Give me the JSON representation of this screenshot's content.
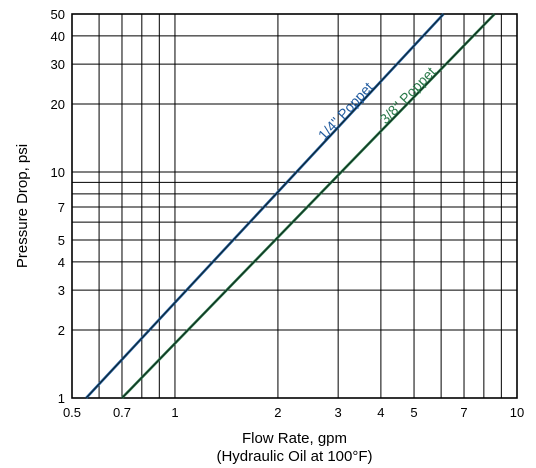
{
  "chart_data": {
    "type": "line",
    "xscale": "log",
    "yscale": "log",
    "xlim": [
      0.5,
      10
    ],
    "ylim": [
      1,
      50
    ],
    "xlabel": "Flow Rate, gpm",
    "xlabel_sub": "(Hydraulic Oil at 100°F)",
    "ylabel": "Pressure Drop, psi",
    "grid": true,
    "xgrid": [
      0.5,
      0.6,
      0.7,
      0.8,
      0.9,
      1,
      2,
      3,
      4,
      5,
      6,
      7,
      8,
      9,
      10
    ],
    "ygrid": [
      1,
      2,
      3,
      4,
      5,
      6,
      7,
      8,
      9,
      10,
      20,
      30,
      40,
      50
    ],
    "xticks": [
      {
        "value": 0.5,
        "label": "0.5"
      },
      {
        "value": 0.7,
        "label": "0.7"
      },
      {
        "value": 1,
        "label": "1"
      },
      {
        "value": 2,
        "label": "2"
      },
      {
        "value": 3,
        "label": "3"
      },
      {
        "value": 4,
        "label": "4"
      },
      {
        "value": 5,
        "label": "5"
      },
      {
        "value": 7,
        "label": "7"
      },
      {
        "value": 10,
        "label": "10"
      }
    ],
    "yticks": [
      {
        "value": 1,
        "label": "1"
      },
      {
        "value": 2,
        "label": "2"
      },
      {
        "value": 3,
        "label": "3"
      },
      {
        "value": 4,
        "label": "4"
      },
      {
        "value": 5,
        "label": "5"
      },
      {
        "value": 7,
        "label": "7"
      },
      {
        "value": 10,
        "label": "10"
      },
      {
        "value": 20,
        "label": "20"
      },
      {
        "value": 30,
        "label": "30"
      },
      {
        "value": 40,
        "label": "40"
      },
      {
        "value": 50,
        "label": "50"
      }
    ],
    "series": [
      {
        "name": "1/4\" Poppet",
        "color": "#1f5a9e",
        "points": [
          [
            0.55,
            1
          ],
          [
            6.1,
            50
          ]
        ]
      },
      {
        "name": "3/8\" Poppet",
        "color": "#2a7a4a",
        "points": [
          [
            0.7,
            1
          ],
          [
            8.6,
            50
          ]
        ]
      }
    ]
  }
}
